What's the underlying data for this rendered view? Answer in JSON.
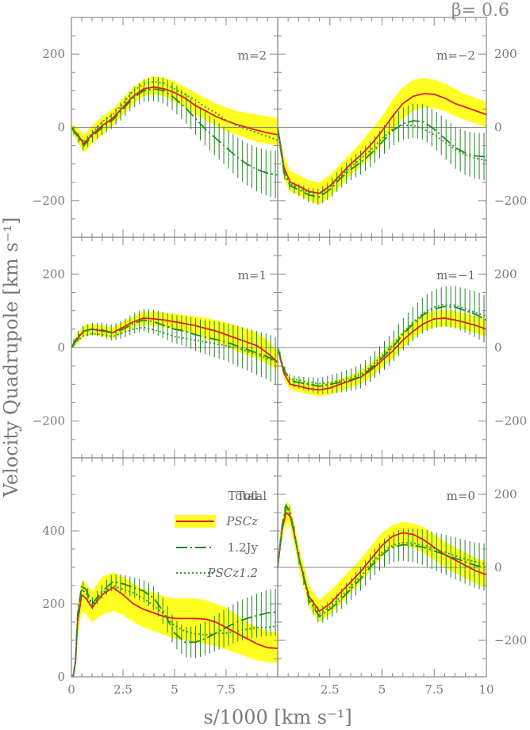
{
  "figure": {
    "beta_label": "β= 0.6",
    "ylabel": "Velocity Quadrupole [km s⁻¹]",
    "xlabel": "s/1000 [km s⁻¹]",
    "colors": {
      "psc": "#dd2222",
      "jy": "#228822",
      "psc12": "#339933",
      "band": "#ffff22",
      "frame": "#888888"
    }
  },
  "legend": {
    "title": "Total",
    "items": [
      {
        "label": "PSCz"
      },
      {
        "label": "1.2Jy"
      },
      {
        "label": "PSCz1.2"
      }
    ]
  },
  "chart_data": [
    {
      "panel": "m=2",
      "type": "line",
      "title": "m=2",
      "ylim": [
        -300,
        300
      ],
      "xlim": [
        0,
        10
      ],
      "yticks": [
        -200,
        0,
        200
      ],
      "xticks": [
        0,
        2.5,
        5,
        7.5
      ],
      "x": [
        0,
        0.3,
        0.6,
        1,
        1.5,
        2,
        2.5,
        3,
        3.5,
        4,
        4.5,
        5,
        5.5,
        6,
        6.5,
        7,
        7.5,
        8,
        8.5,
        9,
        9.5,
        10
      ],
      "series": [
        {
          "name": "PSCz",
          "values": [
            0,
            -20,
            -45,
            -20,
            5,
            25,
            55,
            85,
            105,
            110,
            105,
            95,
            80,
            60,
            45,
            30,
            18,
            8,
            0,
            -8,
            -15,
            -20
          ]
        },
        {
          "name": "1.2Jy",
          "values": [
            0,
            -25,
            -50,
            -25,
            0,
            20,
            50,
            80,
            100,
            105,
            100,
            80,
            55,
            25,
            -5,
            -30,
            -55,
            -80,
            -100,
            -115,
            -125,
            -130
          ]
        },
        {
          "name": "PSCz1.2",
          "values": [
            0,
            -20,
            -40,
            -15,
            15,
            35,
            65,
            100,
            118,
            125,
            120,
            105,
            90,
            75,
            55,
            40,
            20,
            5,
            -5,
            -15,
            -25,
            -35
          ]
        }
      ],
      "band": {
        "lower": [
          -10,
          -40,
          -70,
          -45,
          -20,
          5,
          35,
          65,
          85,
          90,
          85,
          70,
          55,
          35,
          20,
          5,
          -10,
          -20,
          -30,
          -40,
          -45,
          -50
        ],
        "upper": [
          10,
          0,
          -20,
          5,
          30,
          50,
          80,
          110,
          130,
          140,
          135,
          125,
          110,
          95,
          80,
          65,
          55,
          45,
          40,
          35,
          30,
          25
        ]
      }
    },
    {
      "panel": "m=-2",
      "type": "line",
      "title": "m=−2",
      "ylim": [
        -300,
        300
      ],
      "xlim": [
        0,
        10
      ],
      "yticks": [
        -200,
        0,
        200
      ],
      "xticks": [
        0,
        2.5,
        5,
        7.5,
        10
      ],
      "x": [
        0,
        0.3,
        0.6,
        1,
        1.5,
        2,
        2.5,
        3,
        3.5,
        4,
        4.5,
        5,
        5.5,
        6,
        6.5,
        7,
        7.5,
        8,
        8.5,
        9,
        9.5,
        10
      ],
      "series": [
        {
          "name": "PSCz",
          "values": [
            0,
            -110,
            -150,
            -160,
            -175,
            -180,
            -160,
            -130,
            -100,
            -75,
            -45,
            -10,
            30,
            65,
            85,
            92,
            90,
            80,
            65,
            55,
            45,
            35
          ]
        },
        {
          "name": "1.2Jy",
          "values": [
            0,
            -125,
            -160,
            -170,
            -185,
            -190,
            -170,
            -140,
            -115,
            -95,
            -70,
            -40,
            -10,
            10,
            18,
            15,
            -5,
            -30,
            -55,
            -70,
            -78,
            -80
          ]
        },
        {
          "name": "PSCz1.2",
          "values": [
            0,
            -120,
            -155,
            -165,
            -178,
            -183,
            -163,
            -135,
            -108,
            -85,
            -60,
            -30,
            -5,
            5,
            5,
            -5,
            -20,
            -40,
            -60,
            -75,
            -85,
            -90
          ]
        }
      ],
      "band": {
        "lower": [
          0,
          -140,
          -175,
          -185,
          -200,
          -210,
          -190,
          -160,
          -130,
          -105,
          -80,
          -45,
          -10,
          25,
          45,
          55,
          52,
          45,
          30,
          20,
          10,
          0
        ],
        "upper": [
          0,
          -80,
          -120,
          -130,
          -145,
          -150,
          -130,
          -100,
          -70,
          -40,
          -5,
          30,
          75,
          110,
          130,
          135,
          130,
          120,
          105,
          90,
          80,
          70
        ]
      }
    },
    {
      "panel": "m=1",
      "type": "line",
      "title": "m=1",
      "ylim": [
        -300,
        300
      ],
      "xlim": [
        0,
        10
      ],
      "yticks": [
        -200,
        0,
        200
      ],
      "xticks": [
        0,
        2.5,
        5,
        7.5
      ],
      "x": [
        0,
        0.3,
        0.6,
        1,
        1.5,
        2,
        2.5,
        3,
        3.5,
        4,
        4.5,
        5,
        5.5,
        6,
        6.5,
        7,
        7.5,
        8,
        8.5,
        9,
        9.5,
        10
      ],
      "series": [
        {
          "name": "PSCz",
          "values": [
            0,
            25,
            45,
            50,
            45,
            40,
            55,
            70,
            80,
            78,
            75,
            70,
            65,
            60,
            52,
            45,
            35,
            25,
            15,
            5,
            -15,
            -40
          ]
        },
        {
          "name": "1.2Jy",
          "values": [
            0,
            30,
            45,
            50,
            48,
            40,
            50,
            65,
            75,
            70,
            60,
            50,
            45,
            35,
            28,
            22,
            15,
            5,
            -5,
            -15,
            -25,
            -40
          ]
        },
        {
          "name": "PSCz1.2",
          "values": [
            0,
            20,
            32,
            38,
            35,
            30,
            40,
            50,
            55,
            48,
            40,
            30,
            25,
            20,
            15,
            10,
            5,
            0,
            -10,
            -20,
            -30,
            -40
          ]
        }
      ],
      "band": {
        "lower": [
          0,
          10,
          30,
          35,
          30,
          25,
          40,
          55,
          62,
          60,
          55,
          48,
          42,
          35,
          25,
          15,
          5,
          -10,
          -20,
          -30,
          -45,
          -60
        ],
        "upper": [
          0,
          40,
          60,
          65,
          60,
          55,
          70,
          85,
          98,
          98,
          95,
          92,
          88,
          85,
          80,
          75,
          68,
          60,
          50,
          40,
          20,
          -10
        ]
      }
    },
    {
      "panel": "m=-1",
      "type": "line",
      "title": "m=−1",
      "ylim": [
        -300,
        300
      ],
      "xlim": [
        0,
        10
      ],
      "yticks": [
        -200,
        0,
        200
      ],
      "xticks": [
        0,
        2.5,
        5,
        7.5,
        10
      ],
      "x": [
        0,
        0.3,
        0.6,
        1,
        1.5,
        2,
        2.5,
        3,
        3.5,
        4,
        4.5,
        5,
        5.5,
        6,
        6.5,
        7,
        7.5,
        8,
        8.5,
        9,
        9.5,
        10
      ],
      "series": [
        {
          "name": "PSCz",
          "values": [
            0,
            -70,
            -100,
            -105,
            -112,
            -115,
            -110,
            -100,
            -90,
            -80,
            -60,
            -35,
            -10,
            20,
            45,
            65,
            78,
            80,
            75,
            68,
            60,
            50
          ]
        },
        {
          "name": "1.2Jy",
          "values": [
            0,
            -60,
            -90,
            -95,
            -100,
            -105,
            -100,
            -95,
            -88,
            -78,
            -55,
            -28,
            0,
            35,
            65,
            90,
            105,
            112,
            110,
            100,
            90,
            75
          ]
        },
        {
          "name": "PSCz1.2",
          "values": [
            0,
            -60,
            -85,
            -88,
            -95,
            -98,
            -95,
            -90,
            -82,
            -72,
            -50,
            -22,
            5,
            40,
            70,
            95,
            110,
            118,
            115,
            105,
            95,
            85
          ]
        }
      ],
      "band": {
        "lower": [
          0,
          -85,
          -115,
          -120,
          -128,
          -132,
          -128,
          -118,
          -108,
          -98,
          -80,
          -55,
          -30,
          0,
          25,
          45,
          55,
          58,
          55,
          48,
          40,
          30
        ],
        "upper": [
          0,
          -55,
          -85,
          -90,
          -97,
          -100,
          -95,
          -85,
          -75,
          -62,
          -40,
          -15,
          15,
          45,
          70,
          90,
          100,
          102,
          98,
          92,
          85,
          75
        ]
      }
    },
    {
      "panel": "total",
      "type": "line",
      "title": "Total",
      "ylim": [
        0,
        600
      ],
      "xlim": [
        0,
        10
      ],
      "yticks": [
        0,
        200,
        400
      ],
      "xticks": [
        0,
        2.5,
        5,
        7.5
      ],
      "x": [
        0,
        0.1,
        0.2,
        0.3,
        0.5,
        0.7,
        1,
        1.5,
        2,
        2.5,
        3,
        3.5,
        4,
        4.5,
        5,
        5.5,
        6,
        6.5,
        7,
        7.5,
        8,
        8.5,
        9,
        9.5,
        10
      ],
      "series": [
        {
          "name": "PSCz",
          "values": [
            0,
            5,
            40,
            150,
            225,
            215,
            190,
            225,
            245,
            225,
            200,
            185,
            175,
            165,
            160,
            160,
            160,
            158,
            150,
            135,
            120,
            105,
            90,
            80,
            78
          ]
        },
        {
          "name": "1.2Jy",
          "values": [
            0,
            5,
            50,
            170,
            250,
            240,
            200,
            235,
            260,
            255,
            245,
            235,
            215,
            175,
            120,
            95,
            95,
            105,
            120,
            135,
            150,
            160,
            168,
            175,
            178
          ]
        },
        {
          "name": "PSCz1.2",
          "values": [
            0,
            5,
            45,
            160,
            240,
            230,
            195,
            230,
            250,
            240,
            230,
            215,
            195,
            170,
            140,
            125,
            118,
            115,
            118,
            120,
            125,
            130,
            135,
            135,
            140
          ]
        }
      ],
      "band": {
        "lower": [
          0,
          0,
          20,
          110,
          180,
          170,
          150,
          170,
          180,
          170,
          150,
          135,
          125,
          115,
          105,
          100,
          95,
          90,
          85,
          75,
          65,
          55,
          45,
          40,
          38
        ],
        "upper": [
          0,
          10,
          60,
          190,
          265,
          255,
          235,
          275,
          285,
          275,
          255,
          240,
          230,
          220,
          215,
          215,
          215,
          210,
          200,
          190,
          170,
          150,
          135,
          125,
          120
        ]
      }
    },
    {
      "panel": "m=0",
      "type": "line",
      "title": "m=0",
      "ylim": [
        -300,
        300
      ],
      "xlim": [
        0,
        10
      ],
      "yticks": [
        -200,
        0,
        200
      ],
      "xticks": [
        2.5,
        5,
        7.5,
        10
      ],
      "x": [
        0,
        0.2,
        0.4,
        0.6,
        0.8,
        1,
        1.5,
        2,
        2.5,
        3,
        3.5,
        4,
        4.5,
        5,
        5.5,
        6,
        6.5,
        7,
        7.5,
        8,
        8.5,
        9,
        9.5,
        10
      ],
      "series": [
        {
          "name": "PSCz",
          "values": [
            0,
            100,
            150,
            140,
            90,
            30,
            -80,
            -120,
            -100,
            -70,
            -40,
            -10,
            25,
            60,
            85,
            95,
            90,
            75,
            55,
            35,
            20,
            5,
            -10,
            -20
          ]
        },
        {
          "name": "1.2Jy",
          "values": [
            0,
            110,
            170,
            150,
            95,
            30,
            -90,
            -135,
            -115,
            -90,
            -60,
            -30,
            5,
            35,
            55,
            62,
            60,
            55,
            45,
            35,
            25,
            15,
            5,
            0
          ]
        },
        {
          "name": "PSCz1.2",
          "values": [
            0,
            105,
            160,
            145,
            92,
            30,
            -85,
            -128,
            -108,
            -82,
            -52,
            -22,
            12,
            42,
            60,
            68,
            66,
            60,
            52,
            42,
            32,
            22,
            15,
            8
          ]
        }
      ],
      "band": {
        "lower": [
          0,
          70,
          120,
          110,
          60,
          0,
          -110,
          -150,
          -130,
          -100,
          -70,
          -40,
          -5,
          30,
          55,
          60,
          55,
          40,
          20,
          0,
          -15,
          -30,
          -45,
          -55
        ],
        "upper": [
          0,
          130,
          180,
          170,
          120,
          60,
          -50,
          -90,
          -65,
          -35,
          -5,
          25,
          60,
          95,
          115,
          125,
          120,
          110,
          90,
          70,
          55,
          40,
          25,
          15
        ]
      }
    }
  ]
}
